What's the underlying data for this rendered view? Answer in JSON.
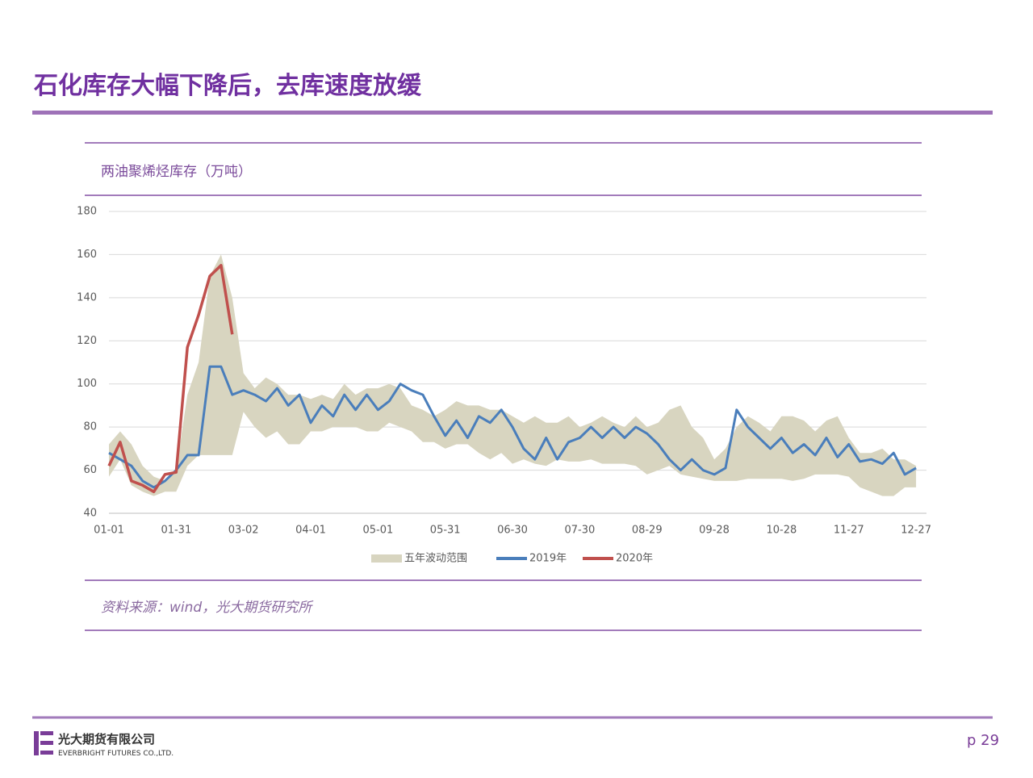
{
  "page": {
    "title": "石化库存大幅下降后，去库速度放缓",
    "company_cn": "光大期货有限公司",
    "company_en": "EVERBRIGHT FUTURES CO.,LTD.",
    "page_number": "p 29"
  },
  "chart_data": {
    "type": "line",
    "title": "两油聚烯烃库存（万吨）",
    "source": "资料来源：wind，光大期货研究所",
    "x": [
      "01-01",
      "01-06",
      "01-11",
      "01-16",
      "01-21",
      "01-26",
      "01-31",
      "02-05",
      "02-10",
      "02-15",
      "02-20",
      "02-25",
      "03-02",
      "03-07",
      "03-12",
      "03-17",
      "03-22",
      "03-27",
      "04-01",
      "04-06",
      "04-11",
      "04-16",
      "04-21",
      "04-26",
      "05-01",
      "05-06",
      "05-11",
      "05-16",
      "05-21",
      "05-26",
      "05-31",
      "06-05",
      "06-10",
      "06-15",
      "06-20",
      "06-25",
      "06-30",
      "07-05",
      "07-10",
      "07-15",
      "07-20",
      "07-25",
      "07-30",
      "08-04",
      "08-09",
      "08-14",
      "08-19",
      "08-24",
      "08-29",
      "09-03",
      "09-08",
      "09-13",
      "09-18",
      "09-23",
      "09-28",
      "10-03",
      "10-08",
      "10-13",
      "10-18",
      "10-23",
      "10-28",
      "11-02",
      "11-07",
      "11-12",
      "11-17",
      "11-22",
      "11-27",
      "12-02",
      "12-07",
      "12-12",
      "12-17",
      "12-22",
      "12-27"
    ],
    "xticks": [
      "01-01",
      "01-31",
      "03-02",
      "04-01",
      "05-01",
      "05-31",
      "06-30",
      "07-30",
      "08-29",
      "09-28",
      "10-28",
      "11-27",
      "12-27"
    ],
    "ylim": [
      40,
      180
    ],
    "yticks": [
      40,
      60,
      80,
      100,
      120,
      140,
      160,
      180
    ],
    "grid": true,
    "series": [
      {
        "name": "五年波动范围",
        "color": "#d8d5c0",
        "kind": "range",
        "high": [
          72,
          78,
          72,
          62,
          57,
          55,
          60,
          95,
          110,
          150,
          160,
          140,
          105,
          98,
          103,
          100,
          95,
          95,
          93,
          95,
          93,
          100,
          95,
          98,
          98,
          100,
          98,
          90,
          88,
          85,
          88,
          92,
          90,
          90,
          88,
          88,
          85,
          82,
          85,
          82,
          82,
          85,
          80,
          82,
          85,
          82,
          80,
          85,
          80,
          82,
          88,
          90,
          80,
          75,
          65,
          70,
          80,
          85,
          82,
          78,
          85,
          85,
          83,
          78,
          83,
          85,
          75,
          68,
          68,
          70,
          65,
          65,
          62
        ],
        "low": [
          57,
          65,
          53,
          50,
          48,
          50,
          50,
          62,
          67,
          67,
          67,
          67,
          87,
          80,
          75,
          78,
          72,
          72,
          78,
          78,
          80,
          80,
          80,
          78,
          78,
          82,
          80,
          78,
          73,
          73,
          70,
          72,
          72,
          68,
          65,
          68,
          63,
          65,
          63,
          62,
          65,
          64,
          64,
          65,
          63,
          63,
          63,
          62,
          58,
          60,
          62,
          58,
          57,
          56,
          55,
          55,
          55,
          56,
          56,
          56,
          56,
          55,
          56,
          58,
          58,
          58,
          57,
          52,
          50,
          48,
          48,
          52,
          52
        ]
      },
      {
        "name": "2019年",
        "color": "#4a7ebb",
        "values": [
          68,
          65,
          62,
          55,
          52,
          55,
          60,
          67,
          67,
          108,
          108,
          95,
          97,
          95,
          92,
          98,
          90,
          95,
          82,
          90,
          85,
          95,
          88,
          95,
          88,
          92,
          100,
          97,
          95,
          85,
          76,
          83,
          75,
          85,
          82,
          88,
          80,
          70,
          65,
          75,
          65,
          73,
          75,
          80,
          75,
          80,
          75,
          80,
          77,
          72,
          65,
          60,
          65,
          60,
          58,
          61,
          88,
          80,
          75,
          70,
          75,
          68,
          72,
          67,
          75,
          66,
          72,
          64,
          65,
          63,
          68,
          58,
          61
        ]
      },
      {
        "name": "2020年",
        "color": "#c0504d",
        "values": [
          62,
          73,
          55,
          53,
          50,
          58,
          59,
          117,
          132,
          150,
          155,
          123,
          null,
          null,
          null,
          null,
          null,
          null,
          null,
          null,
          null,
          null,
          null,
          null,
          null,
          null,
          null,
          null,
          null,
          null,
          null,
          null,
          null,
          null,
          null,
          null,
          null,
          null,
          null,
          null,
          null,
          null,
          null,
          null,
          null,
          null,
          null,
          null,
          null,
          null,
          null,
          null,
          null,
          null,
          null,
          null,
          null,
          null,
          null,
          null,
          null,
          null,
          null,
          null,
          null,
          null,
          null,
          null,
          null,
          null,
          null,
          null,
          null
        ]
      }
    ]
  }
}
